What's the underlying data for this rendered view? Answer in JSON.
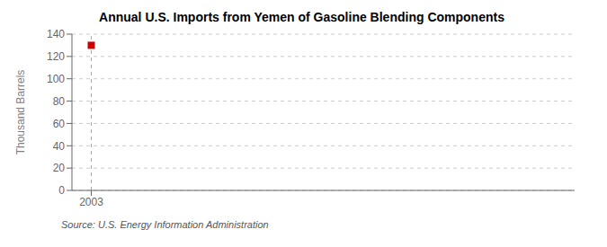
{
  "chart_data": {
    "type": "scatter",
    "title": "Annual U.S. Imports from Yemen of Gasoline Blending Components",
    "y_label": "Thousand Barrels",
    "source": "Source: U.S. Energy Information Administration",
    "x": [
      2003
    ],
    "values": [
      130
    ],
    "color": "#cc0000",
    "marker": "square",
    "xlim": [
      2002.2,
      2023
    ],
    "xticks": [
      2003
    ],
    "ylim": [
      0,
      140
    ],
    "yticks": [
      0,
      20,
      40,
      60,
      80,
      100,
      120,
      140
    ],
    "grid": "y",
    "vline": 2003
  }
}
